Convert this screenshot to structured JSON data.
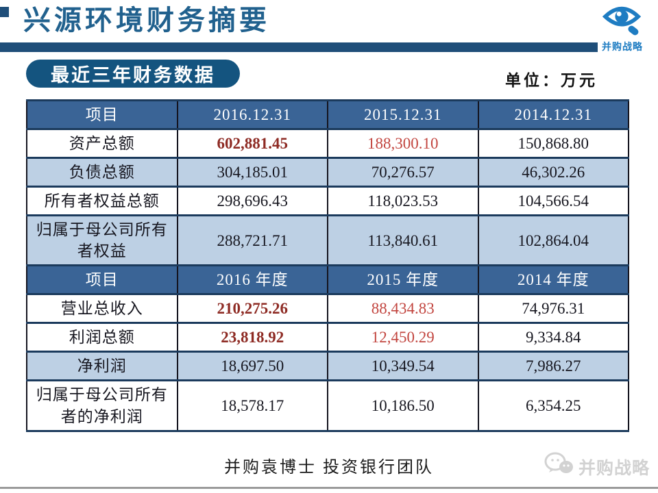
{
  "slide": {
    "title": "兴源环境财务摘要",
    "section_label": "最近三年财务数据",
    "unit_label": "单位：万元",
    "footer_text": "并购袁博士 投资银行团队",
    "brand_top_text": "并购战略",
    "brand_bottom_text": "并购战略"
  },
  "colors": {
    "navy_bar": "#1F4E79",
    "title_blue": "#21618E",
    "pill_bg": "#14547F",
    "header_bg": "#3A6496",
    "row_shaded": "#BDD0E4",
    "border_dark": "#1B3A5C",
    "text_dark": "#16161F",
    "red_bold": "#8E2B24",
    "red": "#C2453F",
    "logo_blue": "#1E7CC2",
    "watermark_gray": "#D2D2D2"
  },
  "table": {
    "sections": [
      {
        "header": [
          "项目",
          "2016.12.31",
          "2015.12.31",
          "2014.12.31"
        ],
        "rows": [
          {
            "label": "资产总额",
            "values": [
              "602,881.45",
              "188,300.10",
              "150,868.80"
            ],
            "shaded": false,
            "emphasis": true
          },
          {
            "label": "负债总额",
            "values": [
              "304,185.01",
              "70,276.57",
              "46,302.26"
            ],
            "shaded": true,
            "emphasis": false
          },
          {
            "label": "所有者权益总额",
            "values": [
              "298,696.43",
              "118,023.53",
              "104,566.54"
            ],
            "shaded": false,
            "emphasis": false
          },
          {
            "label": "归属于母公司所有者权益",
            "values": [
              "288,721.71",
              "113,840.61",
              "102,864.04"
            ],
            "shaded": true,
            "emphasis": false
          }
        ]
      },
      {
        "header": [
          "项目",
          "2016 年度",
          "2015 年度",
          "2014 年度"
        ],
        "rows": [
          {
            "label": "营业总收入",
            "values": [
              "210,275.26",
              "88,434.83",
              "74,976.31"
            ],
            "shaded": false,
            "emphasis": true
          },
          {
            "label": "利润总额",
            "values": [
              "23,818.92",
              "12,450.29",
              "9,334.84"
            ],
            "shaded": false,
            "emphasis": true
          },
          {
            "label": "净利润",
            "values": [
              "18,697.50",
              "10,349.54",
              "7,986.27"
            ],
            "shaded": true,
            "emphasis": false
          },
          {
            "label": "归属于母公司所有者的净利润",
            "values": [
              "18,578.17",
              "10,186.50",
              "6,354.25"
            ],
            "shaded": false,
            "emphasis": false
          }
        ]
      }
    ]
  }
}
